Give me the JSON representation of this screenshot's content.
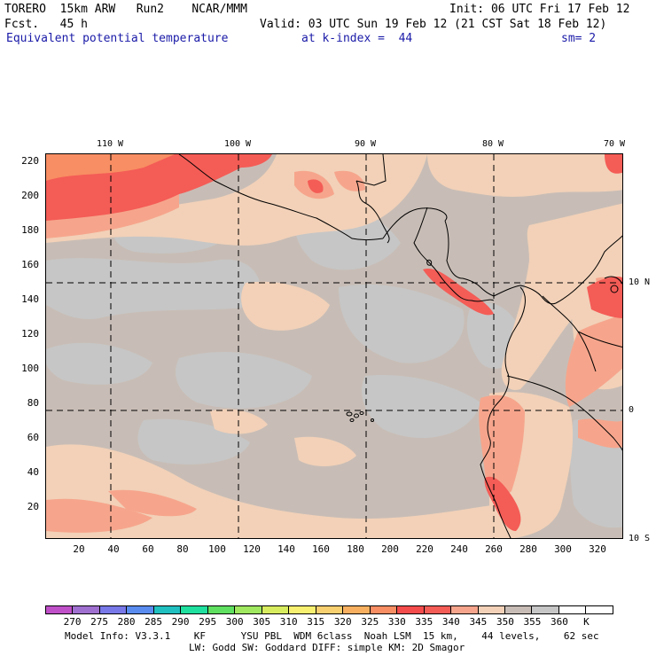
{
  "header": {
    "line1_left": "TORERO  15km ARW   Run2    NCAR/MMM",
    "line1_right": "Init: 06 UTC Fri 17 Feb 12",
    "line2_left": "Fcst.   45 h",
    "line2_right": "Valid: 03 UTC Sun 19 Feb 12 (21 CST Sat 18 Feb 12)",
    "field": "Equivalent potential temperature",
    "level": "at k-index =  44",
    "smooth": "sm= 2"
  },
  "map": {
    "lon_labels": [
      "110 W",
      "100 W",
      "90 W",
      "80 W",
      "70 W"
    ],
    "lat_labels": [
      "10 N",
      "0",
      "10 S"
    ],
    "y_ticks": [
      "220",
      "200",
      "180",
      "160",
      "140",
      "120",
      "100",
      "80",
      "60",
      "40",
      "20"
    ],
    "x_ticks": [
      "20",
      "40",
      "60",
      "80",
      "100",
      "120",
      "140",
      "160",
      "180",
      "200",
      "220",
      "240",
      "260",
      "280",
      "300",
      "320"
    ],
    "colors": {
      "background": "#c8bdb6",
      "gray": "#c6c6c6",
      "light": "#f2d1b8",
      "mid": "#f6a58c",
      "strong": "#f45c56",
      "orange": "#f88e63",
      "land_line": "#000000"
    }
  },
  "colorbar": {
    "colors": [
      "#c050c8",
      "#a070d0",
      "#7878e8",
      "#5a8cf0",
      "#20c0c0",
      "#20e0a0",
      "#60e060",
      "#a0e860",
      "#d8ec60",
      "#f8f070",
      "#f8d070",
      "#f8b060",
      "#f88e63",
      "#f44c4c",
      "#f45c56",
      "#f6a58c",
      "#f2d1b8",
      "#c8bdb6",
      "#c6c6c6",
      "#ffffff",
      "#ffffff"
    ],
    "labels": [
      "270",
      "275",
      "280",
      "285",
      "290",
      "295",
      "300",
      "305",
      "310",
      "315",
      "320",
      "325",
      "330",
      "335",
      "340",
      "345",
      "350",
      "355",
      "360",
      "K"
    ]
  },
  "footer": {
    "line1": "Model Info: V3.3.1    KF      YSU PBL  WDM 6class  Noah LSM  15 km,    44 levels,    62 sec",
    "line2": "LW: Godd SW: Goddard DIFF: simple KM: 2D Smagor"
  }
}
